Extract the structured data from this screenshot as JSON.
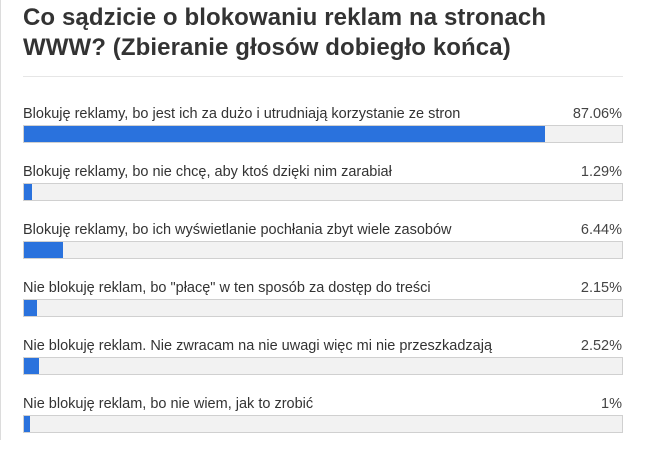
{
  "poll": {
    "title": "Co sądzicie o blokowaniu reklam na stronach WWW? (Zbieranie głosów dobiegło końca)",
    "bar_color": "#2a72dd",
    "options": [
      {
        "label": "Blokuję reklamy, bo jest ich za dużo i utrudniają korzystanie ze stron",
        "percent_text": "87.06%",
        "percent": 87.06
      },
      {
        "label": "Blokuję reklamy, bo nie chcę, aby ktoś dzięki nim zarabiał",
        "percent_text": "1.29%",
        "percent": 1.29
      },
      {
        "label": "Blokuję reklamy, bo ich wyświetlanie pochłania zbyt wiele zasobów",
        "percent_text": "6.44%",
        "percent": 6.44
      },
      {
        "label": "Nie blokuję reklam, bo \"płacę\" w ten sposób za dostęp do treści",
        "percent_text": "2.15%",
        "percent": 2.15
      },
      {
        "label": "Nie blokuję reklam. Nie zwracam na nie uwagi więc mi nie przeszkadzają",
        "percent_text": "2.52%",
        "percent": 2.52
      },
      {
        "label": "Nie blokuję reklam, bo nie wiem, jak to zrobić",
        "percent_text": "1%",
        "percent": 1
      }
    ]
  }
}
